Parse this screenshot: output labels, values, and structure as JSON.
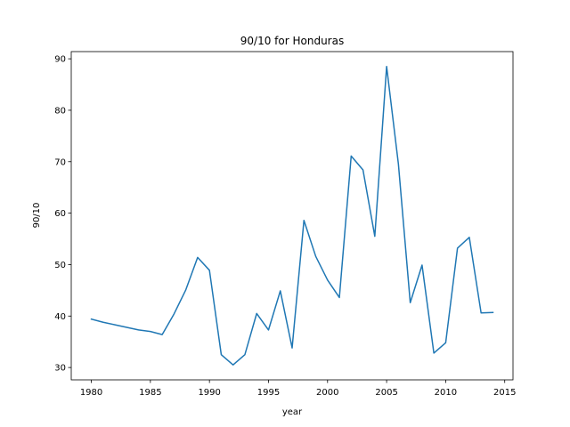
{
  "chart_data": {
    "type": "line",
    "title": "90/10 for Honduras",
    "xlabel": "year",
    "ylabel": "90/10",
    "xlim": [
      1978.3,
      2015.7
    ],
    "ylim": [
      27.6,
      91.4
    ],
    "xticks": [
      1980,
      1985,
      1990,
      1995,
      2000,
      2005,
      2010,
      2015
    ],
    "yticks": [
      30,
      40,
      50,
      60,
      70,
      80,
      90
    ],
    "grid": false,
    "series": [
      {
        "color": "#1f77b4",
        "x": [
          1980,
          1981,
          1982,
          1983,
          1984,
          1985,
          1986,
          1987,
          1988,
          1989,
          1990,
          1991,
          1992,
          1993,
          1994,
          1995,
          1996,
          1997,
          1998,
          1999,
          2000,
          2001,
          2002,
          2003,
          2004,
          2005,
          2006,
          2007,
          2008,
          2009,
          2010,
          2011,
          2012,
          2013,
          2014
        ],
        "y": [
          39.4,
          38.8,
          38.3,
          37.8,
          37.3,
          37.0,
          36.4,
          40.4,
          45.1,
          51.4,
          48.9,
          32.5,
          30.5,
          32.5,
          40.5,
          37.3,
          44.9,
          33.8,
          58.6,
          51.6,
          47.0,
          43.6,
          71.1,
          68.4,
          55.5,
          88.5,
          69.5,
          42.6,
          49.9,
          32.8,
          34.8,
          53.2,
          55.3,
          40.6,
          40.7
        ]
      }
    ]
  }
}
